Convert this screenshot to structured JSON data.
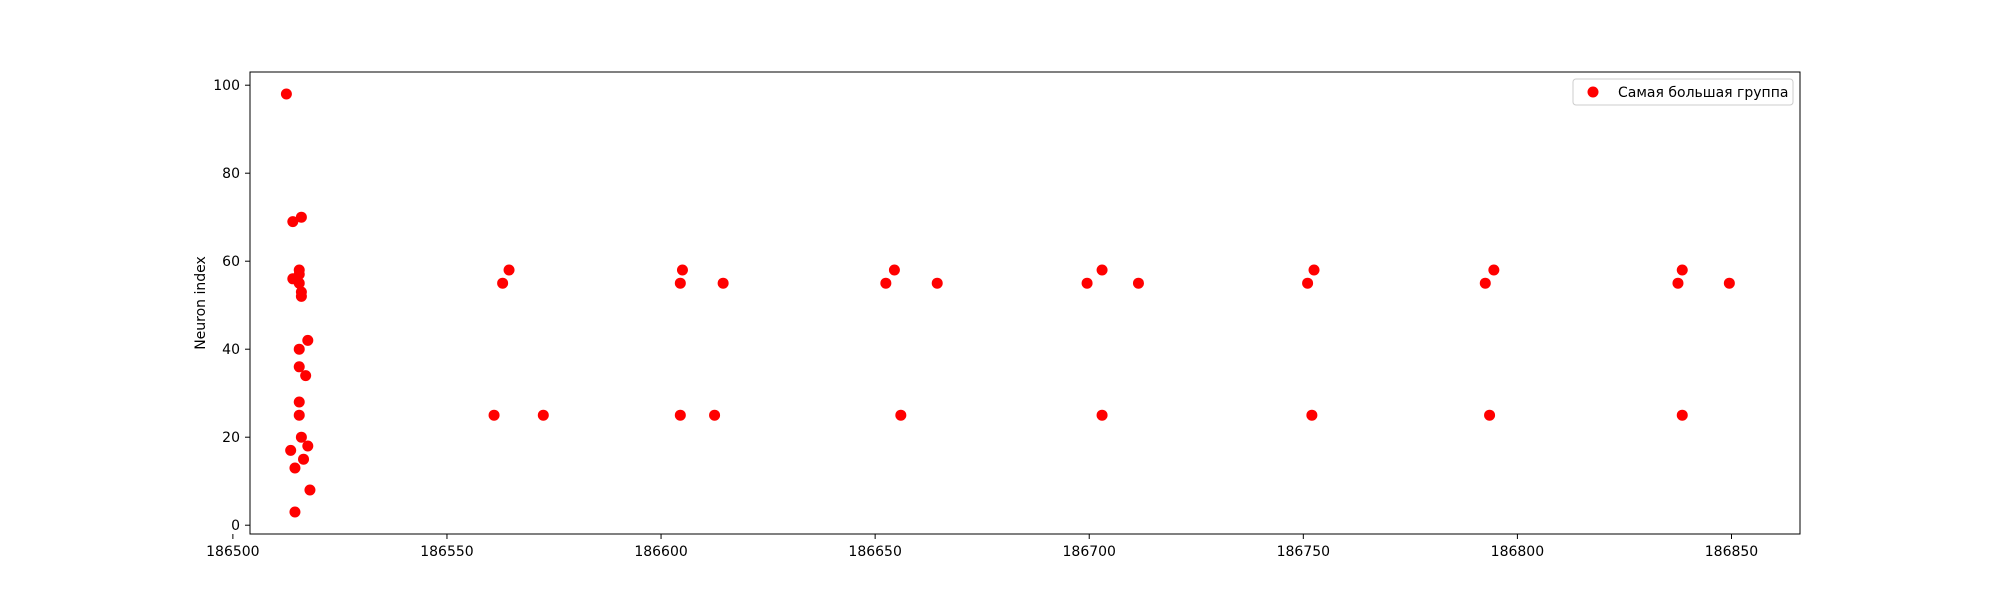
{
  "chart_data": {
    "type": "scatter",
    "title": "",
    "xlabel": "",
    "ylabel": "Neuron index",
    "xlim": [
      186504,
      186866
    ],
    "ylim": [
      -2,
      103
    ],
    "xticks": [
      186500,
      186550,
      186600,
      186650,
      186700,
      186750,
      186800,
      186850
    ],
    "yticks": [
      0,
      20,
      40,
      60,
      80,
      100
    ],
    "grid": false,
    "legend": {
      "placement": "top-right"
    },
    "series": [
      {
        "name": "Самая большая группа",
        "color": "#ff0000",
        "marker": "circle",
        "points": [
          [
            186512.5,
            98
          ],
          [
            186514,
            69
          ],
          [
            186516,
            70
          ],
          [
            186515.5,
            58
          ],
          [
            186515.5,
            57
          ],
          [
            186514,
            56
          ],
          [
            186515.5,
            55
          ],
          [
            186516,
            53
          ],
          [
            186516,
            52
          ],
          [
            186517.5,
            42
          ],
          [
            186515.5,
            40
          ],
          [
            186515.5,
            36
          ],
          [
            186517,
            34
          ],
          [
            186515.5,
            28
          ],
          [
            186515.5,
            25
          ],
          [
            186516,
            20
          ],
          [
            186517.5,
            18
          ],
          [
            186513.5,
            17
          ],
          [
            186516.5,
            15
          ],
          [
            186514.5,
            13
          ],
          [
            186518,
            8
          ],
          [
            186514.5,
            3
          ],
          [
            186563,
            55
          ],
          [
            186564.5,
            58
          ],
          [
            186561,
            25
          ],
          [
            186572.5,
            25
          ],
          [
            186604.5,
            55
          ],
          [
            186605,
            58
          ],
          [
            186614.5,
            55
          ],
          [
            186604.5,
            25
          ],
          [
            186612.5,
            25
          ],
          [
            186652.5,
            55
          ],
          [
            186654.5,
            58
          ],
          [
            186664.5,
            55
          ],
          [
            186656,
            25
          ],
          [
            186699.5,
            55
          ],
          [
            186703,
            58
          ],
          [
            186711.5,
            55
          ],
          [
            186703,
            25
          ],
          [
            186751,
            55
          ],
          [
            186752.5,
            58
          ],
          [
            186752,
            25
          ],
          [
            186792.5,
            55
          ],
          [
            186794.5,
            58
          ],
          [
            186793.5,
            25
          ],
          [
            186837.5,
            55
          ],
          [
            186838.5,
            58
          ],
          [
            186849.5,
            55
          ],
          [
            186838.5,
            25
          ]
        ]
      }
    ]
  }
}
